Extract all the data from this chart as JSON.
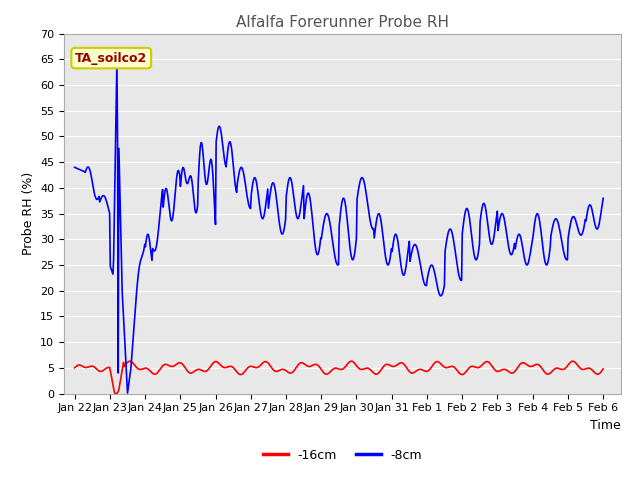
{
  "title": "Alfalfa Forerunner Probe RH",
  "xlabel": "Time",
  "ylabel": "Probe RH (%)",
  "ylim": [
    0,
    70
  ],
  "yticks": [
    0,
    5,
    10,
    15,
    20,
    25,
    30,
    35,
    40,
    45,
    50,
    55,
    60,
    65,
    70
  ],
  "bg_color": "#ffffff",
  "plot_bg_color": "#e8e8e8",
  "grid_color": "#ffffff",
  "line_color_16cm": "#ff0000",
  "line_color_8cm": "#0000ff",
  "legend_label_16cm": "-16cm",
  "legend_label_8cm": "-8cm",
  "annotation_text": "TA_soilco2",
  "annotation_bg": "#ffffcc",
  "annotation_border": "#cccc00",
  "annotation_text_color": "#990000",
  "tick_labels": [
    "Jan 22",
    "Jan 23",
    "Jan 24",
    "Jan 25",
    "Jan 26",
    "Jan 27",
    "Jan 28",
    "Jan 29",
    "Jan 30",
    "Jan 31",
    "Feb 1",
    "Feb 2",
    "Feb 3",
    "Feb 4",
    "Feb 5",
    "Feb 6"
  ],
  "tick_positions": [
    0,
    1,
    2,
    3,
    4,
    5,
    6,
    7,
    8,
    9,
    10,
    11,
    12,
    13,
    14,
    15
  ]
}
